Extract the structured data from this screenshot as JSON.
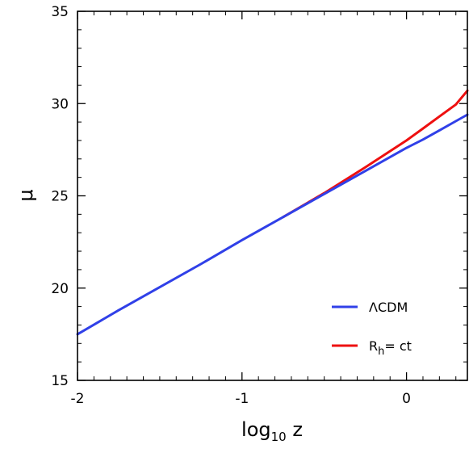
{
  "chart_data": {
    "type": "line",
    "title": "",
    "xlabel": "log10 z",
    "xlabel_main": "log",
    "xlabel_sub": "10",
    "xlabel_rest": " z",
    "ylabel": "μ",
    "xlim": [
      -2,
      0.37
    ],
    "ylim": [
      15,
      35
    ],
    "x_ticks": [
      -2,
      -1,
      0
    ],
    "x_tick_labels": [
      "-2",
      "-1",
      "0"
    ],
    "y_ticks": [
      15,
      20,
      25,
      30,
      35
    ],
    "y_tick_labels": [
      "15",
      "20",
      "25",
      "30",
      "35"
    ],
    "grid": false,
    "legend_placement": "lower-right",
    "series": [
      {
        "name": "ΛCDM",
        "color": "#3040e8",
        "x": [
          -2.0,
          -1.75,
          -1.5,
          -1.25,
          -1.0,
          -0.75,
          -0.5,
          -0.25,
          0.0,
          0.1,
          0.2,
          0.3,
          0.37
        ],
        "y": [
          17.5,
          18.8,
          20.05,
          21.3,
          22.6,
          23.85,
          25.1,
          26.35,
          27.6,
          28.05,
          28.55,
          29.05,
          29.4
        ]
      },
      {
        "name": "R_h = ct",
        "color": "#ee1010",
        "x": [
          -0.75,
          -0.5,
          -0.25,
          0.0,
          0.1,
          0.2,
          0.3,
          0.37
        ],
        "y": [
          23.85,
          25.15,
          26.55,
          28.0,
          28.65,
          29.3,
          29.95,
          30.7
        ]
      }
    ],
    "legend": {
      "lcdm_label": "ΛCDM",
      "rh_main": "R",
      "rh_sub": "h",
      "rh_rest": "= ct"
    }
  }
}
